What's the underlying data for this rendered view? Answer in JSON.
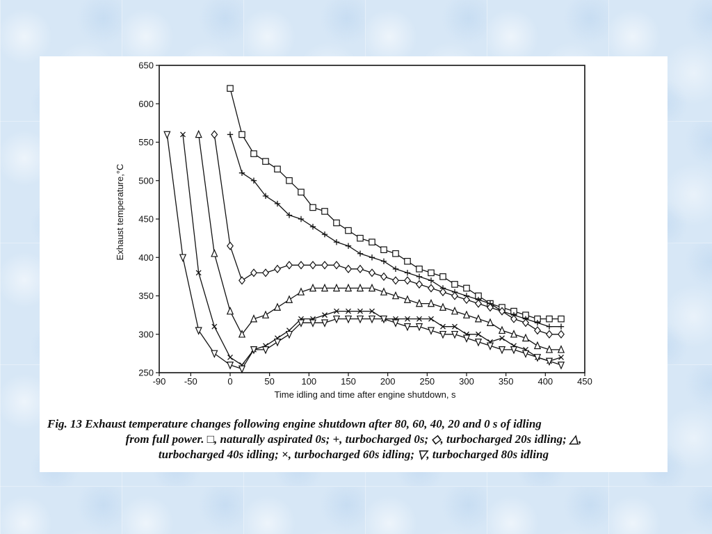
{
  "caption": {
    "line1": "Fig. 13 Exhaust temperature changes following engine shutdown after 80, 60, 40, 20 and 0 s of idling",
    "line2": "from full power. □, naturally aspirated 0s; +, turbocharged 0s; ◇, turbocharged 20s idling; △,",
    "line3": "turbocharged 40s idling; ×, turbocharged 60s idling; ▽, turbocharged 80s idling"
  },
  "chart_data": {
    "type": "line",
    "xlabel": "Time idling and time after engine shutdown, s",
    "ylabel": "Exhaust temperature,°C",
    "xlim": [
      -90,
      450
    ],
    "ylim": [
      250,
      650
    ],
    "xticks": [
      -90,
      -50,
      0,
      50,
      100,
      150,
      200,
      250,
      300,
      350,
      400,
      450
    ],
    "yticks": [
      250,
      300,
      350,
      400,
      450,
      500,
      550,
      600,
      650
    ],
    "series": [
      {
        "marker": "square",
        "x": [
          0,
          15,
          30,
          45,
          60,
          75,
          90,
          105,
          120,
          135,
          150,
          165,
          180,
          195,
          210,
          225,
          240,
          255,
          270,
          285,
          300,
          315,
          330,
          345,
          360,
          375,
          390,
          405,
          420
        ],
        "y": [
          620,
          560,
          535,
          525,
          515,
          500,
          485,
          465,
          460,
          445,
          435,
          425,
          420,
          410,
          405,
          395,
          385,
          380,
          375,
          365,
          360,
          350,
          340,
          335,
          330,
          325,
          320,
          320,
          320
        ]
      },
      {
        "marker": "plus",
        "x": [
          0,
          15,
          30,
          45,
          60,
          75,
          90,
          105,
          120,
          135,
          150,
          165,
          180,
          195,
          210,
          225,
          240,
          255,
          270,
          285,
          300,
          315,
          330,
          345,
          360,
          375,
          390,
          405,
          420
        ],
        "y": [
          560,
          510,
          500,
          480,
          470,
          455,
          450,
          440,
          430,
          420,
          415,
          405,
          400,
          395,
          385,
          380,
          375,
          370,
          360,
          355,
          350,
          345,
          340,
          330,
          325,
          320,
          315,
          310,
          310
        ]
      },
      {
        "marker": "diamond",
        "x": [
          -20,
          0,
          15,
          30,
          45,
          60,
          75,
          90,
          105,
          120,
          135,
          150,
          165,
          180,
          195,
          210,
          225,
          240,
          255,
          270,
          285,
          300,
          315,
          330,
          345,
          360,
          375,
          390,
          405,
          420
        ],
        "y": [
          560,
          415,
          370,
          380,
          380,
          385,
          390,
          390,
          390,
          390,
          390,
          385,
          385,
          380,
          375,
          370,
          370,
          365,
          360,
          355,
          350,
          345,
          340,
          335,
          330,
          320,
          315,
          305,
          300,
          300
        ]
      },
      {
        "marker": "triangle-up",
        "x": [
          -40,
          -20,
          0,
          15,
          30,
          45,
          60,
          75,
          90,
          105,
          120,
          135,
          150,
          165,
          180,
          195,
          210,
          225,
          240,
          255,
          270,
          285,
          300,
          315,
          330,
          345,
          360,
          375,
          390,
          405,
          420
        ],
        "y": [
          560,
          405,
          330,
          300,
          320,
          325,
          335,
          345,
          355,
          360,
          360,
          360,
          360,
          360,
          360,
          355,
          350,
          345,
          340,
          340,
          335,
          330,
          325,
          320,
          315,
          305,
          300,
          295,
          285,
          280,
          280
        ]
      },
      {
        "marker": "x",
        "x": [
          -60,
          -40,
          -20,
          0,
          15,
          30,
          45,
          60,
          75,
          90,
          105,
          120,
          135,
          150,
          165,
          180,
          195,
          210,
          225,
          240,
          255,
          270,
          285,
          300,
          315,
          330,
          345,
          360,
          375,
          390,
          405,
          420
        ],
        "y": [
          560,
          380,
          310,
          270,
          260,
          280,
          285,
          295,
          305,
          320,
          320,
          325,
          330,
          330,
          330,
          330,
          320,
          320,
          320,
          320,
          320,
          310,
          310,
          300,
          300,
          290,
          295,
          285,
          280,
          270,
          265,
          270
        ]
      },
      {
        "marker": "triangle-down",
        "x": [
          -80,
          -60,
          -40,
          -20,
          0,
          15,
          30,
          45,
          60,
          75,
          90,
          105,
          120,
          135,
          150,
          165,
          180,
          195,
          210,
          225,
          240,
          255,
          270,
          285,
          300,
          315,
          330,
          345,
          360,
          375,
          390,
          405,
          420
        ],
        "y": [
          560,
          400,
          305,
          275,
          260,
          255,
          280,
          280,
          290,
          300,
          315,
          315,
          315,
          320,
          320,
          320,
          320,
          320,
          315,
          310,
          310,
          305,
          300,
          300,
          295,
          290,
          285,
          280,
          280,
          275,
          270,
          265,
          260
        ]
      }
    ]
  }
}
